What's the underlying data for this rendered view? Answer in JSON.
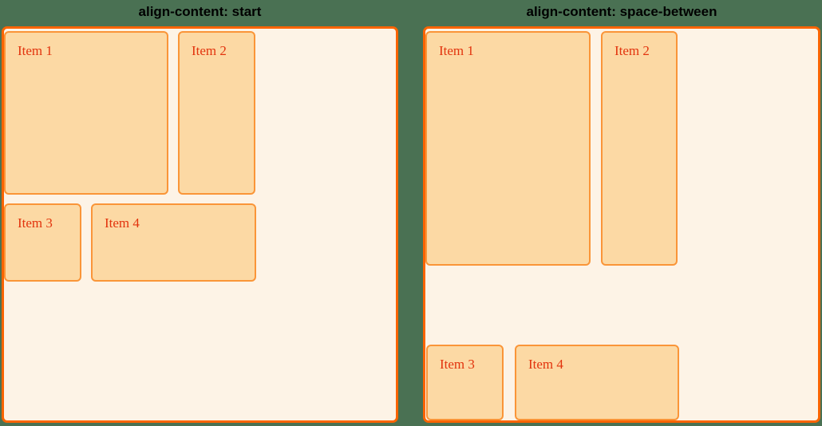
{
  "palette": {
    "page_bg": "#4a7153",
    "title_color": "#000000",
    "container_bg": "#fdf3e6",
    "container_border": "#fa6400",
    "item_bg": "#fcd9a4",
    "item_border": "#fa9538",
    "item_text": "#e2330d"
  },
  "panels": [
    {
      "title": "align-content: start",
      "align_content_value": "start",
      "items": [
        {
          "label": "Item 1"
        },
        {
          "label": "Item 2"
        },
        {
          "label": "Item 3"
        },
        {
          "label": "Item 4"
        }
      ]
    },
    {
      "title": "align-content: space-between",
      "align_content_value": "space-between",
      "items": [
        {
          "label": "Item 1"
        },
        {
          "label": "Item 2"
        },
        {
          "label": "Item 3"
        },
        {
          "label": "Item 4"
        }
      ]
    }
  ]
}
